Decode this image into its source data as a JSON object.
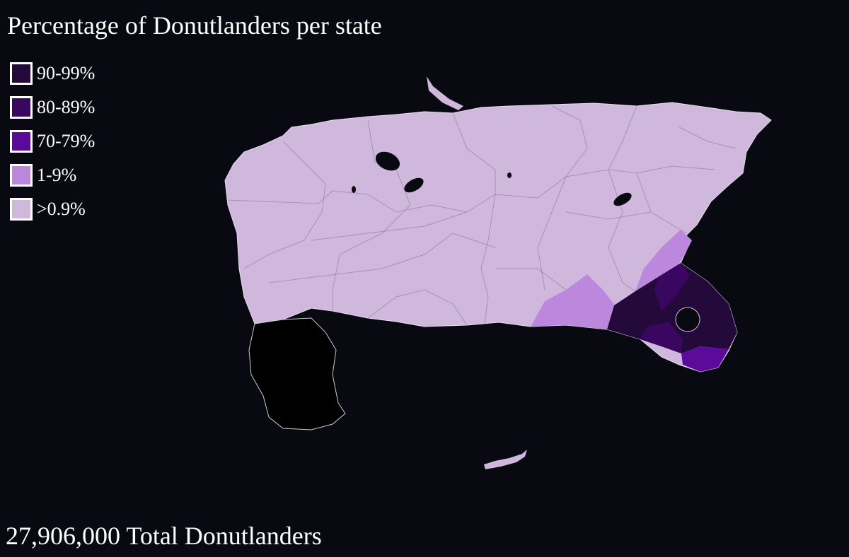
{
  "title": "Percentage of Donutlanders per state",
  "legend": [
    {
      "label": "90-99%",
      "color": "#230a3a"
    },
    {
      "label": "80-89%",
      "color": "#3a0760"
    },
    {
      "label": "70-79%",
      "color": "#5c0a9a"
    },
    {
      "label": "1-9%",
      "color": "#bb88dd"
    },
    {
      "label": ">0.9%",
      "color": "#d0b8dc"
    }
  ],
  "footer": "27,906,000 Total Donutlanders"
}
